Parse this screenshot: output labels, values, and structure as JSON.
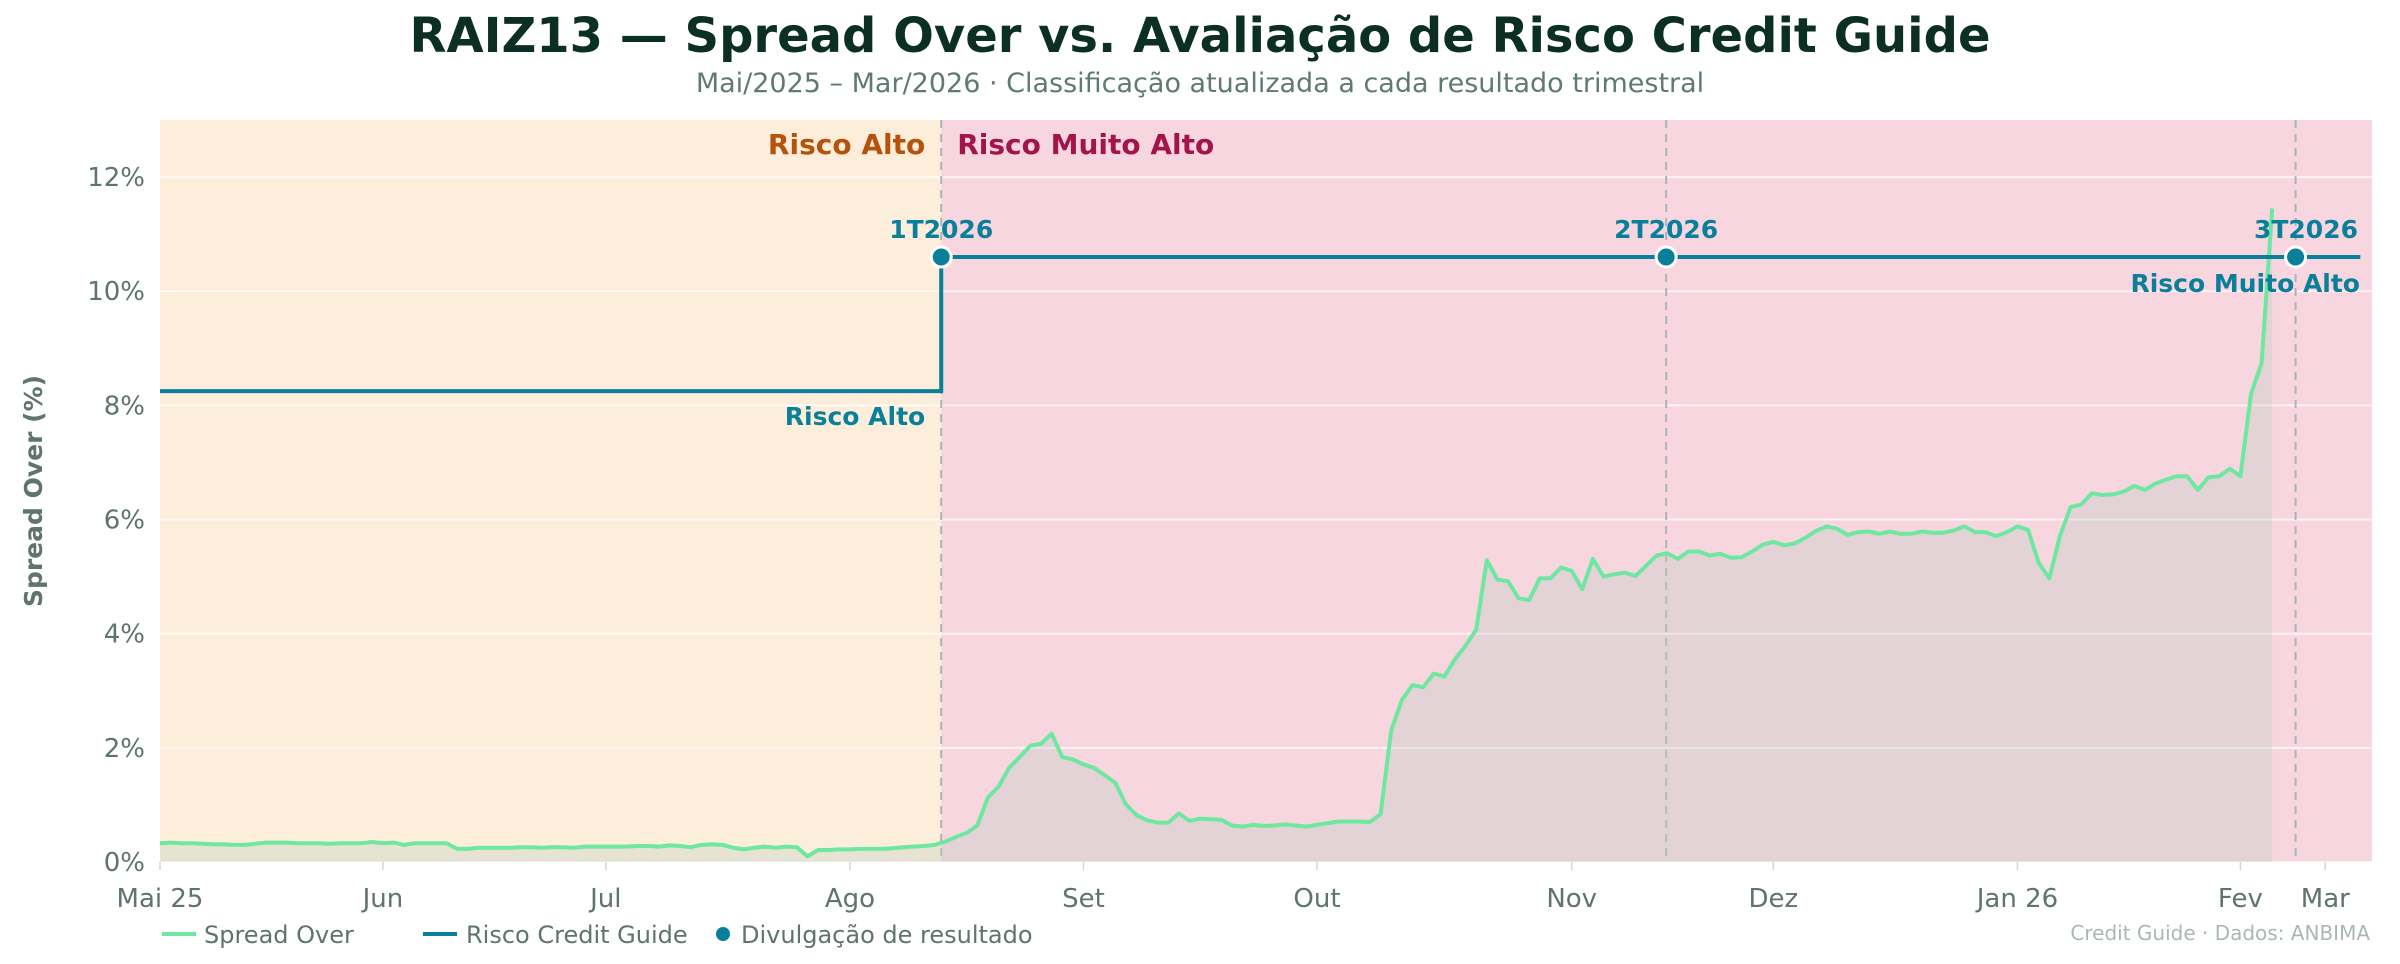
{
  "title": "RAIZ13 — Spread Over vs. Avaliação de Risco Credit Guide",
  "subtitle": "Mai/2025 – Mar/2026  ·  Classificação atualizada a cada resultado trimestral",
  "footer": "Credit Guide · Dados: ANBIMA",
  "legend": {
    "spread": "Spread Over",
    "risk": "Risco Credit Guide",
    "release": "Divulgação de resultado"
  },
  "colors": {
    "title": "#0b3021",
    "spread_line": "#6ee8a0",
    "risk_line": "#0a7f9a",
    "region_high": "#fdeedb",
    "region_very_high": "#f7d6e0",
    "region_high_label": "#b5520c",
    "region_very_high_label": "#a3154a"
  },
  "chart_data": {
    "type": "line",
    "ylabel": "Spread Over (%)",
    "ylim": [
      0,
      13
    ],
    "xlim": [
      0,
      208.4
    ],
    "yticks": [
      0,
      2,
      4,
      6,
      8,
      10,
      12
    ],
    "ytick_labels": [
      "0%",
      "2%",
      "4%",
      "6%",
      "8%",
      "10%",
      "12%"
    ],
    "xticks": [
      {
        "x": 0,
        "label": "Mai 25"
      },
      {
        "x": 21,
        "label": "Jun"
      },
      {
        "x": 42,
        "label": "Jul"
      },
      {
        "x": 65,
        "label": "Ago"
      },
      {
        "x": 87,
        "label": "Set"
      },
      {
        "x": 109,
        "label": "Out"
      },
      {
        "x": 133,
        "label": "Nov"
      },
      {
        "x": 152,
        "label": "Dez"
      },
      {
        "x": 175,
        "label": "Jan 26"
      },
      {
        "x": 196,
        "label": "Fev"
      },
      {
        "x": 204,
        "label": "Mar"
      }
    ],
    "grid": true,
    "legend_position": "bottom-left",
    "series": [
      {
        "name": "Spread Over",
        "values": [
          0.33,
          0.34,
          0.33,
          0.33,
          0.32,
          0.31,
          0.31,
          0.3,
          0.3,
          0.32,
          0.34,
          0.34,
          0.34,
          0.33,
          0.33,
          0.33,
          0.32,
          0.33,
          0.33,
          0.33,
          0.35,
          0.33,
          0.34,
          0.3,
          0.33,
          0.33,
          0.33,
          0.33,
          0.23,
          0.23,
          0.25,
          0.25,
          0.25,
          0.25,
          0.26,
          0.26,
          0.25,
          0.26,
          0.26,
          0.25,
          0.27,
          0.27,
          0.27,
          0.27,
          0.27,
          0.28,
          0.28,
          0.27,
          0.29,
          0.28,
          0.26,
          0.3,
          0.31,
          0.3,
          0.25,
          0.22,
          0.25,
          0.27,
          0.25,
          0.27,
          0.26,
          0.1,
          0.21,
          0.21,
          0.22,
          0.22,
          0.23,
          0.23,
          0.23,
          0.24,
          0.26,
          0.27,
          0.28,
          0.3,
          0.36,
          0.44,
          0.51,
          0.64,
          1.13,
          1.32,
          1.65,
          1.84,
          2.04,
          2.07,
          2.25,
          1.84,
          1.8,
          1.71,
          1.65,
          1.52,
          1.39,
          1.01,
          0.82,
          0.73,
          0.69,
          0.69,
          0.85,
          0.72,
          0.76,
          0.75,
          0.74,
          0.64,
          0.62,
          0.65,
          0.63,
          0.64,
          0.66,
          0.64,
          0.62,
          0.65,
          0.68,
          0.71,
          0.71,
          0.71,
          0.7,
          0.84,
          2.3,
          2.84,
          3.1,
          3.06,
          3.3,
          3.25,
          3.55,
          3.79,
          4.07,
          5.29,
          4.95,
          4.92,
          4.62,
          4.59,
          4.97,
          4.97,
          5.16,
          5.1,
          4.78,
          5.31,
          5.0,
          5.04,
          5.07,
          5.01,
          5.19,
          5.37,
          5.41,
          5.31,
          5.44,
          5.44,
          5.37,
          5.4,
          5.33,
          5.34,
          5.44,
          5.56,
          5.61,
          5.55,
          5.58,
          5.68,
          5.8,
          5.88,
          5.84,
          5.73,
          5.78,
          5.79,
          5.75,
          5.79,
          5.75,
          5.75,
          5.79,
          5.77,
          5.77,
          5.81,
          5.88,
          5.78,
          5.78,
          5.71,
          5.78,
          5.88,
          5.82,
          5.24,
          4.97,
          5.71,
          6.22,
          6.26,
          6.46,
          6.43,
          6.44,
          6.49,
          6.59,
          6.52,
          6.63,
          6.7,
          6.76,
          6.76,
          6.52,
          6.74,
          6.76,
          6.89,
          6.76,
          8.2,
          8.74,
          11.45
        ]
      }
    ],
    "risk_levels": [
      {
        "label": "Risco Alto",
        "y": 8.25,
        "x_start": 0,
        "x_end": 73.6
      },
      {
        "label": "Risco Muito Alto",
        "y": 10.6,
        "x_start": 73.6,
        "x_end": 207.3
      }
    ],
    "regions": [
      {
        "label": "Risco Alto",
        "x_start": 0,
        "x_end": 73.6
      },
      {
        "label": "Risco Muito Alto",
        "x_start": 73.6,
        "x_end": 208.4
      }
    ],
    "releases": [
      {
        "label": "1T2026",
        "x": 73.6
      },
      {
        "label": "2T2026",
        "x": 141.9
      },
      {
        "label": "3T2026",
        "x": 201.2
      }
    ]
  }
}
